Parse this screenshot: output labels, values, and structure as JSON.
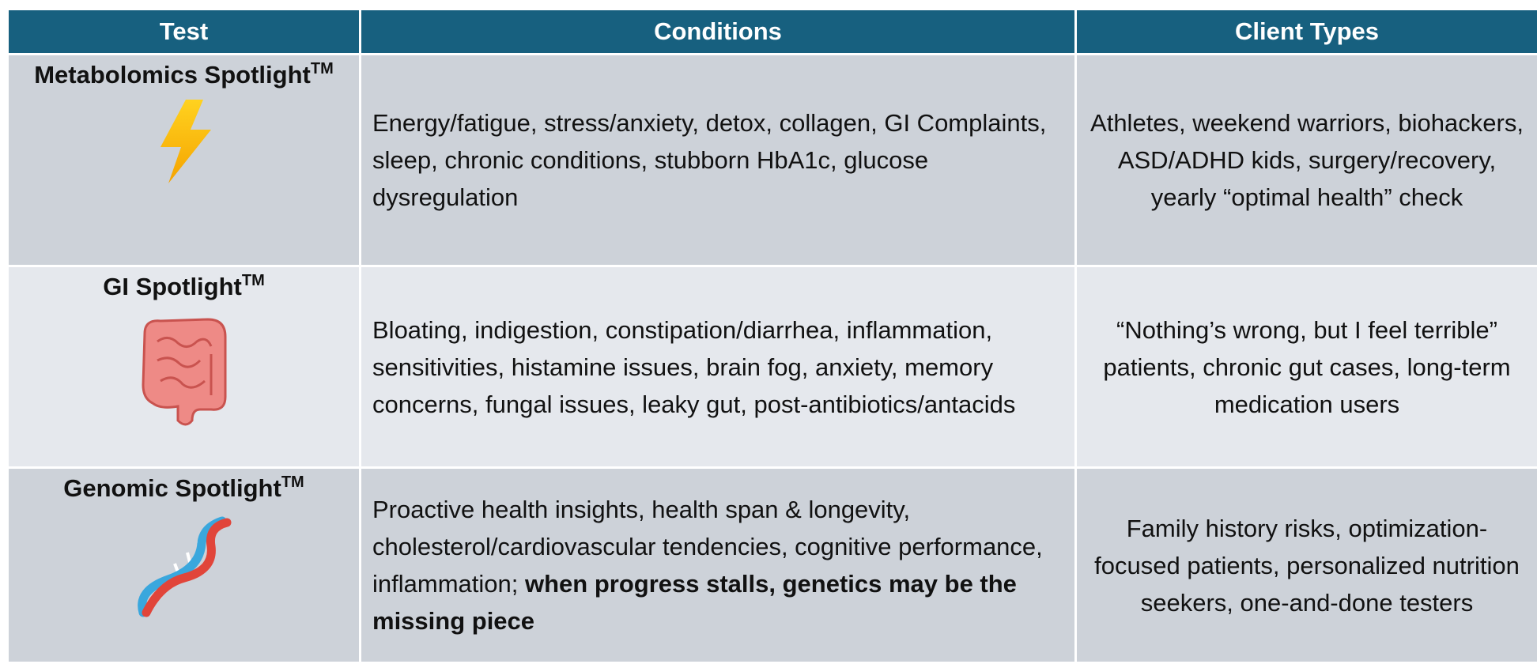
{
  "table": {
    "headers": [
      "Test",
      "Conditions",
      "Client Types"
    ],
    "rows": [
      {
        "test": {
          "name": "Metabolomics Spotlight",
          "mark": "TM"
        },
        "conditions": {
          "plain": "Energy/fatigue, stress/anxiety, detox, collagen, GI Complaints, sleep, chronic conditions, stubborn HbA1c, glucose dysregulation"
        },
        "client_types": "Athletes, weekend warriors, biohackers, ASD/ADHD kids, surgery/recovery, yearly “optimal health” check"
      },
      {
        "test": {
          "name": "GI Spotlight",
          "mark": "TM"
        },
        "conditions": {
          "plain": "Bloating, indigestion, constipation/diarrhea, inflammation, sensitivities, histamine issues, brain fog, anxiety, memory concerns, fungal issues, leaky gut, post-antibiotics/antacids"
        },
        "client_types": "“Nothing’s wrong, but I feel terrible” patients, chronic gut cases, long-term medication users"
      },
      {
        "test": {
          "name": "Genomic Spotlight",
          "mark": "TM"
        },
        "conditions": {
          "plain": "Proactive health insights, health span & longevity, cholesterol/cardiovascular tendencies, cognitive performance, inflammation;",
          "bold": "when progress stalls, genetics may be the missing piece"
        },
        "client_types": "Family history risks, optimization-focused patients, personalized nutrition seekers, one-and-done testers"
      }
    ]
  }
}
